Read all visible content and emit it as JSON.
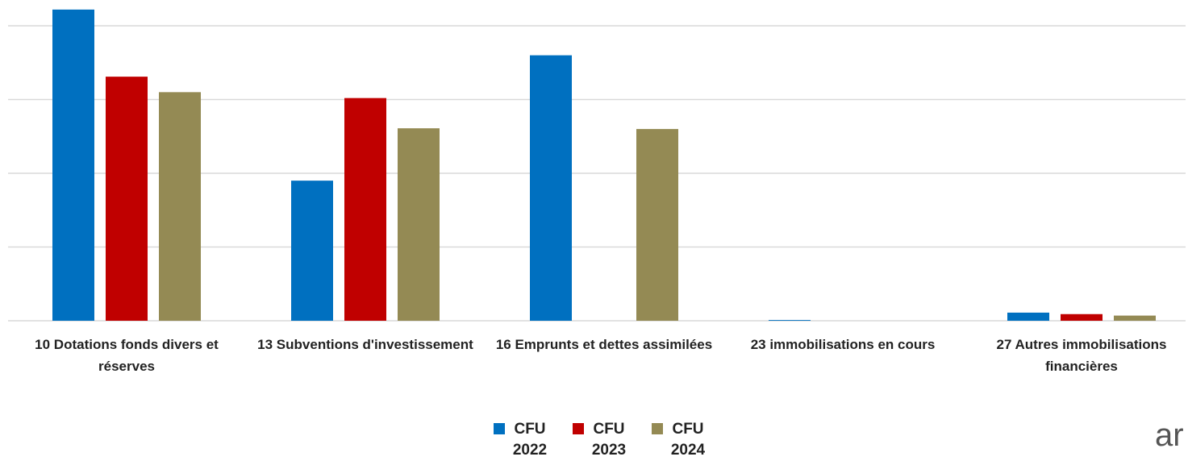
{
  "chart_data": {
    "type": "bar",
    "categories": [
      "10 Dotations fonds divers et réserves",
      "13 Subventions d'investissement",
      "16 Emprunts et dettes assimilées",
      "23 immobilisations en cours",
      "27 Autres immobilisations financières"
    ],
    "series": [
      {
        "name": "CFU 2022",
        "color": "#0070c0",
        "values": [
          4.22,
          1.9,
          3.6,
          0.01,
          0.11
        ]
      },
      {
        "name": "CFU 2023",
        "color": "#c00000",
        "values": [
          3.31,
          3.02,
          0,
          0,
          0.09
        ]
      },
      {
        "name": "CFU 2024",
        "color": "#948a54",
        "values": [
          3.1,
          2.61,
          2.6,
          0,
          0.07
        ]
      }
    ],
    "ylim": [
      0,
      4.3
    ],
    "yticks": [
      0,
      1,
      2,
      3,
      4
    ],
    "grid": true,
    "legend": "bottom",
    "watermark": "ar"
  }
}
